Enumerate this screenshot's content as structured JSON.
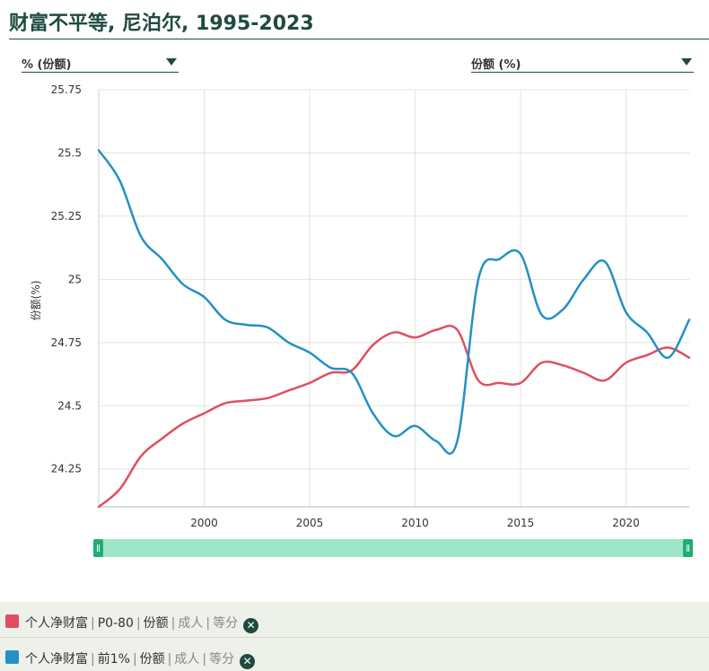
{
  "page": {
    "title": "财富不平等, 尼泊尔, 1995-2023"
  },
  "selectors": {
    "left": {
      "label": "% (份额)"
    },
    "right": {
      "label": "份额 (%)"
    }
  },
  "icons": {
    "dropdown": "chevron-down-icon",
    "remove": "close-icon"
  },
  "slider": {
    "start_fraction": 0.0,
    "end_fraction": 1.0
  },
  "legend": {
    "items": [
      {
        "indicator": "个人净财富",
        "group": "P0-80",
        "measure": "份额",
        "unit": "成人",
        "sharing": "等分",
        "color": "#e04f5f"
      },
      {
        "indicator": "个人净财富",
        "group": "前1%",
        "measure": "份额",
        "unit": "成人",
        "sharing": "等分",
        "color": "#2490c6"
      }
    ]
  },
  "chart_data": {
    "type": "line",
    "ylabel": "份额(%)",
    "xlim": [
      1995,
      2023
    ],
    "ylim": [
      24.1,
      25.75
    ],
    "x_ticks": [
      2000,
      2005,
      2010,
      2015,
      2020
    ],
    "y_ticks": [
      24.25,
      24.5,
      24.75,
      25,
      25.25,
      25.5,
      25.75
    ],
    "y_tick_labels": [
      "24.25",
      "24.5",
      "24.75",
      "25",
      "25.25",
      "25.5",
      "25.75"
    ],
    "grid": true,
    "x": [
      1995,
      1996,
      1997,
      1998,
      1999,
      2000,
      2001,
      2002,
      2003,
      2004,
      2005,
      2006,
      2007,
      2008,
      2009,
      2010,
      2011,
      2012,
      2013,
      2014,
      2015,
      2016,
      2017,
      2018,
      2019,
      2020,
      2021,
      2022,
      2023
    ],
    "series": [
      {
        "name": "P0-80",
        "color": "#e04f5f",
        "values": [
          24.1,
          24.17,
          24.3,
          24.37,
          24.43,
          24.47,
          24.51,
          24.52,
          24.53,
          24.56,
          24.59,
          24.63,
          24.64,
          24.74,
          24.79,
          24.77,
          24.8,
          24.8,
          24.6,
          24.59,
          24.59,
          24.67,
          24.66,
          24.63,
          24.6,
          24.67,
          24.7,
          24.73,
          24.69
        ]
      },
      {
        "name": "前1%",
        "color": "#2490c6",
        "values": [
          25.51,
          25.39,
          25.17,
          25.08,
          24.98,
          24.93,
          24.84,
          24.82,
          24.81,
          24.75,
          24.71,
          24.65,
          24.63,
          24.47,
          24.38,
          24.42,
          24.36,
          24.36,
          25.0,
          25.08,
          25.1,
          24.86,
          24.88,
          25.0,
          25.07,
          24.87,
          24.79,
          24.69,
          24.84
        ]
      }
    ]
  }
}
